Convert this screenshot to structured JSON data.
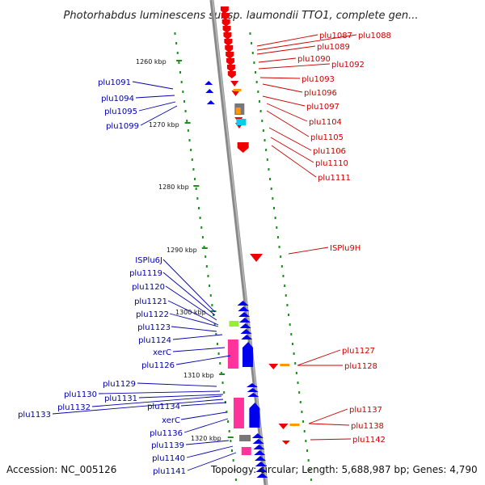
{
  "title": "Photorhabdus luminescens subsp. laumondii TTO1, complete gen...",
  "footer": {
    "accession": "Accession: NC_005126",
    "topology": "Topology: circular; Length: 5,688,987 bp; Genes: 4,790"
  },
  "colors": {
    "backbone": "#888888",
    "forward_gene": "#0000ee",
    "reverse_gene": "#ee0000",
    "left_label": "#0000aa",
    "right_label": "#cc0000",
    "tick": "#228b22",
    "pseudo_pink": "#ff3399",
    "green_feature": "#99ee33",
    "orange_feature": "#ff9900",
    "cyan_feature": "#00ccee",
    "grey_feature": "#777777"
  },
  "kbp_markers": [
    "1260 kbp",
    "1270 kbp",
    "1280 kbp",
    "1290 kbp",
    "1300 kbp",
    "1310 kbp",
    "1320 kbp"
  ],
  "left_labels": [
    "plu1091",
    "plu1094",
    "plu1095",
    "plu1099",
    "ISPlu6J",
    "plu1119",
    "plu1120",
    "plu1121",
    "plu1122",
    "plu1123",
    "plu1124",
    "xerC",
    "plu1126",
    "plu1129",
    "plu1130",
    "plu1131",
    "plu1132",
    "plu1133",
    "plu1134",
    "xerC",
    "plu1136",
    "plu1139",
    "plu1140",
    "plu1141"
  ],
  "right_labels": [
    "plu1087",
    "plu1088",
    "plu1089",
    "plu1090",
    "plu1092",
    "plu1093",
    "plu1096",
    "plu1097",
    "plu1104",
    "plu1105",
    "plu1106",
    "plu1110",
    "plu1111",
    "ISPlu9H",
    "plu1127",
    "plu1128",
    "plu1137",
    "plu1138",
    "plu1142"
  ]
}
